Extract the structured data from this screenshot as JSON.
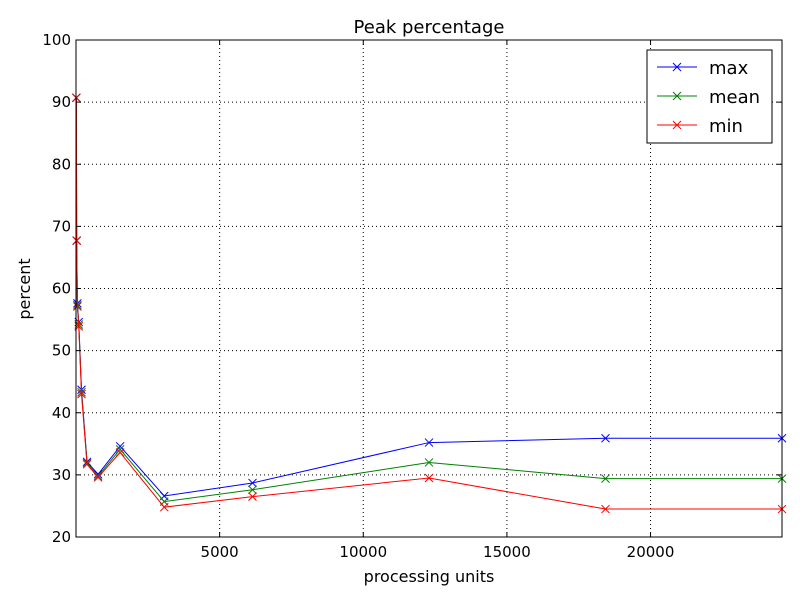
{
  "chart_data": {
    "type": "line",
    "title": "Peak percentage",
    "xlabel": "processing units",
    "ylabel": "percent",
    "xlim": [
      0,
      24576
    ],
    "ylim": [
      20,
      100
    ],
    "xticks": [
      5000,
      10000,
      15000,
      20000
    ],
    "yticks": [
      20,
      30,
      40,
      50,
      60,
      70,
      80,
      90,
      100
    ],
    "grid": true,
    "legend": "top-right",
    "x": [
      12,
      24,
      48,
      96,
      192,
      384,
      768,
      1536,
      3072,
      6144,
      12288,
      18432,
      24576
    ],
    "series": [
      {
        "name": "max",
        "color": "#0000ff",
        "values": [
          90.7,
          67.7,
          57.6,
          54.6,
          43.7,
          32.1,
          30.1,
          34.6,
          26.6,
          28.7,
          35.2,
          35.9,
          35.9
        ]
      },
      {
        "name": "mean",
        "color": "#008000",
        "values": [
          90.7,
          67.7,
          57.3,
          54.2,
          43.3,
          31.9,
          29.8,
          34.1,
          25.7,
          27.6,
          32.0,
          29.4,
          29.4
        ]
      },
      {
        "name": "min",
        "color": "#ff0000",
        "values": [
          90.7,
          67.7,
          57.1,
          53.9,
          43.0,
          31.7,
          29.6,
          33.6,
          24.8,
          26.5,
          29.5,
          24.5,
          24.5
        ]
      }
    ]
  }
}
